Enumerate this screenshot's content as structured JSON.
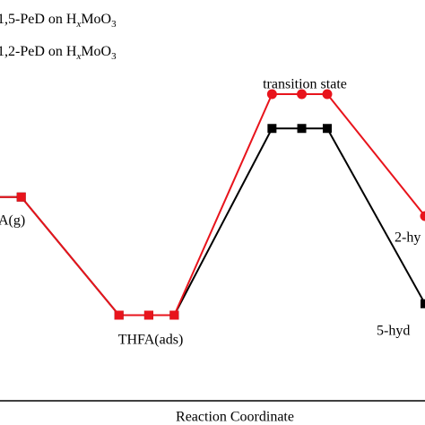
{
  "chart_data": {
    "type": "line",
    "xlabel": "Reaction Coordinate",
    "xlim": [
      0,
      100
    ],
    "ylim": [
      0,
      100
    ],
    "x": [
      0,
      5,
      28,
      35,
      41,
      64,
      71,
      77,
      100
    ],
    "series": [
      {
        "name": "1,5-PeD on HxMoO3",
        "color": "#000000",
        "marker": "square",
        "values": [
          53,
          53,
          22,
          22,
          22,
          71,
          71,
          71,
          25
        ]
      },
      {
        "name": "1,2-PeD on HxMoO3",
        "color": "#e8141c",
        "marker": "circle",
        "values": [
          53,
          53,
          22,
          22,
          22,
          80,
          80,
          80,
          48
        ]
      }
    ],
    "annotations": [
      "A(g)",
      "THFA(ads)",
      "transition state",
      "2-hy",
      "5-hyd"
    ]
  }
}
